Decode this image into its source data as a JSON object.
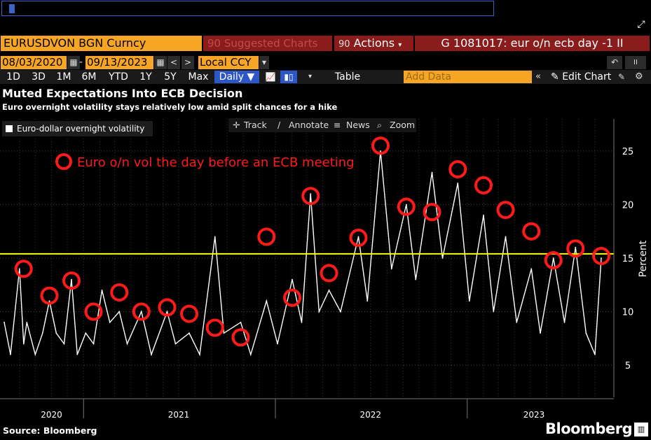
{
  "toolbar": {
    "ticker": "EURUSDVON BGN Curncy",
    "suggested": "Suggested Charts",
    "suggested_icon": "90",
    "actions": "Actions",
    "actions_icon": "90",
    "gtitle": "G 1081017: eur o/n ecb day -1 II",
    "date_start": "08/03/2020",
    "date_end": "09/13/2023",
    "currency": "Local CCY",
    "periods": [
      "1D",
      "3D",
      "1M",
      "6M",
      "YTD",
      "1Y",
      "5Y",
      "Max"
    ],
    "daily": "Daily",
    "table": "Table",
    "add_data_placeholder": "Add Data",
    "edit_chart": "Edit Chart"
  },
  "chart_tools": {
    "track": "Track",
    "annotate": "Annotate",
    "news": "News",
    "zoom": "Zoom"
  },
  "title": "Muted Expectations Into ECB Decision",
  "subtitle": "Euro overnight volatility stays relatively low amid split chances for a hike",
  "legend": "Euro-dollar overnight volatility",
  "annotation": "Euro o/n vol the day before an ECB meeting",
  "source": "Source: Bloomberg",
  "brand": "Bloomberg",
  "colors": {
    "accent": "#f7a525",
    "header": "#8a1c1c",
    "selected": "#2f56c6",
    "line": "#ffffff",
    "marker": "#ff1a1a",
    "reference": "#ffff00"
  },
  "chart_data": {
    "type": "line",
    "ylabel": "Percent",
    "ylim": [
      2,
      28
    ],
    "yticks": [
      5,
      10,
      15,
      20,
      25
    ],
    "xlim": [
      "2020-08-03",
      "2023-09-13"
    ],
    "xtick_labels": [
      "2020",
      "2021",
      "2022",
      "2023"
    ],
    "reference_line": 15.4,
    "series": [
      {
        "name": "Euro-dollar overnight volatility",
        "x": [
          "2020-08-03",
          "2020-08-15",
          "2020-09-01",
          "2020-09-09",
          "2020-09-15",
          "2020-10-01",
          "2020-10-15",
          "2020-10-28",
          "2020-11-10",
          "2020-11-25",
          "2020-12-09",
          "2020-12-20",
          "2021-01-05",
          "2021-01-20",
          "2021-02-05",
          "2021-02-20",
          "2021-03-10",
          "2021-03-25",
          "2021-04-21",
          "2021-05-10",
          "2021-06-09",
          "2021-06-25",
          "2021-07-21",
          "2021-08-10",
          "2021-09-08",
          "2021-09-25",
          "2021-10-27",
          "2021-11-15",
          "2021-12-15",
          "2022-01-05",
          "2022-02-02",
          "2022-02-20",
          "2022-03-09",
          "2022-03-25",
          "2022-04-13",
          "2022-05-05",
          "2022-06-08",
          "2022-06-25",
          "2022-07-20",
          "2022-08-10",
          "2022-09-07",
          "2022-09-25",
          "2022-10-26",
          "2022-11-15",
          "2022-12-14",
          "2023-01-05",
          "2023-02-01",
          "2023-02-20",
          "2023-03-15",
          "2023-04-05",
          "2023-05-03",
          "2023-05-20",
          "2023-06-14",
          "2023-07-05",
          "2023-07-26",
          "2023-08-15",
          "2023-09-01",
          "2023-09-13"
        ],
        "values": [
          9,
          6,
          14,
          7,
          9,
          6,
          8,
          11,
          8,
          7,
          13,
          6,
          8,
          7,
          12,
          9,
          10,
          7,
          10,
          6,
          10,
          7,
          8,
          6,
          17,
          8,
          9,
          6,
          11,
          7,
          13,
          9,
          21,
          10,
          12,
          10,
          17,
          11,
          25,
          14,
          20,
          13,
          23,
          15,
          22,
          11,
          19,
          10,
          17,
          9,
          14,
          8,
          15,
          9,
          16,
          8,
          6,
          15
        ]
      }
    ],
    "ecb_meeting_markers": [
      {
        "date": "2020-09-09",
        "value": 14.0
      },
      {
        "date": "2020-10-28",
        "value": 11.5
      },
      {
        "date": "2020-12-09",
        "value": 12.9
      },
      {
        "date": "2021-01-20",
        "value": 10.0
      },
      {
        "date": "2021-03-10",
        "value": 11.8
      },
      {
        "date": "2021-04-21",
        "value": 10.0
      },
      {
        "date": "2021-06-09",
        "value": 10.4
      },
      {
        "date": "2021-07-21",
        "value": 9.8
      },
      {
        "date": "2021-09-08",
        "value": 8.5
      },
      {
        "date": "2021-10-27",
        "value": 7.6
      },
      {
        "date": "2021-12-15",
        "value": 17.0
      },
      {
        "date": "2022-02-02",
        "value": 11.3
      },
      {
        "date": "2022-03-09",
        "value": 20.8
      },
      {
        "date": "2022-04-13",
        "value": 13.6
      },
      {
        "date": "2022-06-08",
        "value": 16.9
      },
      {
        "date": "2022-07-20",
        "value": 25.5
      },
      {
        "date": "2022-09-07",
        "value": 19.8
      },
      {
        "date": "2022-10-26",
        "value": 19.3
      },
      {
        "date": "2022-12-14",
        "value": 23.3
      },
      {
        "date": "2023-02-01",
        "value": 21.8
      },
      {
        "date": "2023-03-15",
        "value": 19.5
      },
      {
        "date": "2023-05-03",
        "value": 17.5
      },
      {
        "date": "2023-06-14",
        "value": 14.8
      },
      {
        "date": "2023-07-26",
        "value": 15.9
      },
      {
        "date": "2023-09-13",
        "value": 15.2
      }
    ]
  }
}
